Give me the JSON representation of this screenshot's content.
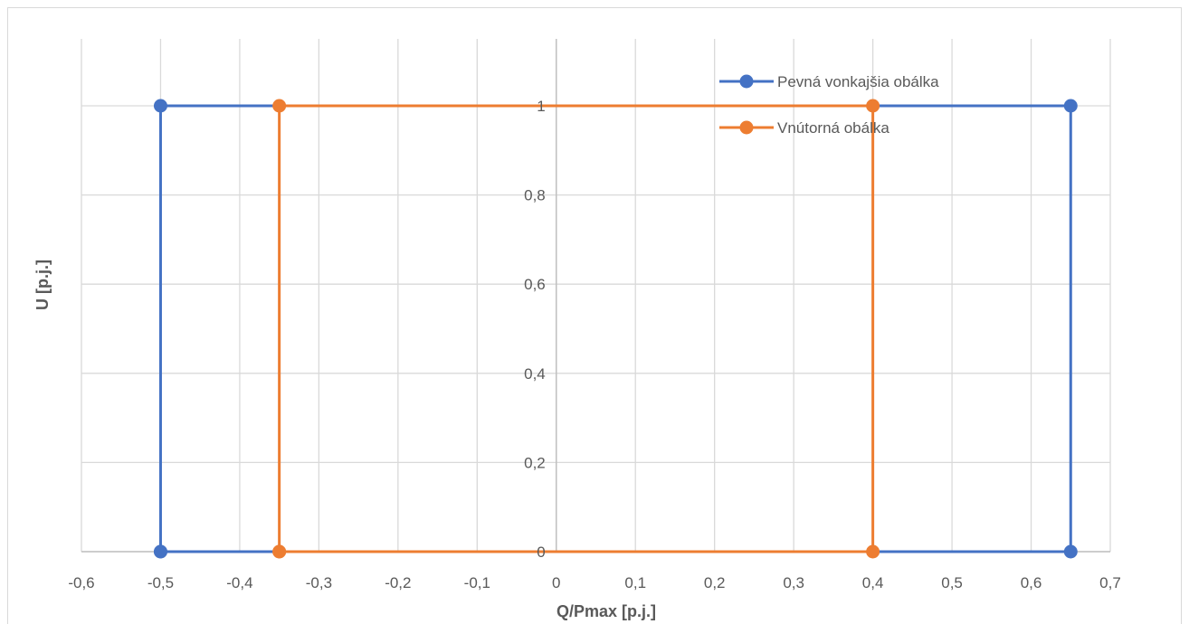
{
  "chart_data": {
    "type": "scatter",
    "title": "",
    "xlabel": "Q/Pmax [p.j.]",
    "ylabel": "U [p.j.]",
    "xlim": [
      -0.6,
      0.7
    ],
    "ylim": [
      0,
      1.2
    ],
    "xticks": [
      -0.6,
      -0.5,
      -0.4,
      -0.3,
      -0.2,
      -0.1,
      0,
      0.1,
      0.2,
      0.3,
      0.4,
      0.5,
      0.6,
      0.7
    ],
    "xtick_labels": [
      "-0,6",
      "-0,5",
      "-0,4",
      "-0,3",
      "-0,2",
      "-0,1",
      "0",
      "0,1",
      "0,2",
      "0,3",
      "0,4",
      "0,5",
      "0,6",
      "0,7"
    ],
    "yticks": [
      0,
      0.2,
      0.4,
      0.6,
      0.8,
      1
    ],
    "ytick_labels": [
      "0",
      "0,2",
      "0,4",
      "0,6",
      "0,8",
      "1"
    ],
    "grid": true,
    "legend_position": "top-right",
    "series": [
      {
        "name": "Pevná vonkajšia obálka",
        "color": "#4472c4",
        "points": [
          [
            -0.5,
            0
          ],
          [
            -0.5,
            1
          ],
          [
            0.65,
            1
          ],
          [
            0.65,
            0
          ],
          [
            -0.5,
            0
          ]
        ]
      },
      {
        "name": "Vnútorná obálka",
        "color": "#ed7d31",
        "points": [
          [
            -0.35,
            0
          ],
          [
            -0.35,
            1
          ],
          [
            0.4,
            1
          ],
          [
            0.4,
            0
          ],
          [
            -0.35,
            0
          ]
        ]
      }
    ]
  }
}
